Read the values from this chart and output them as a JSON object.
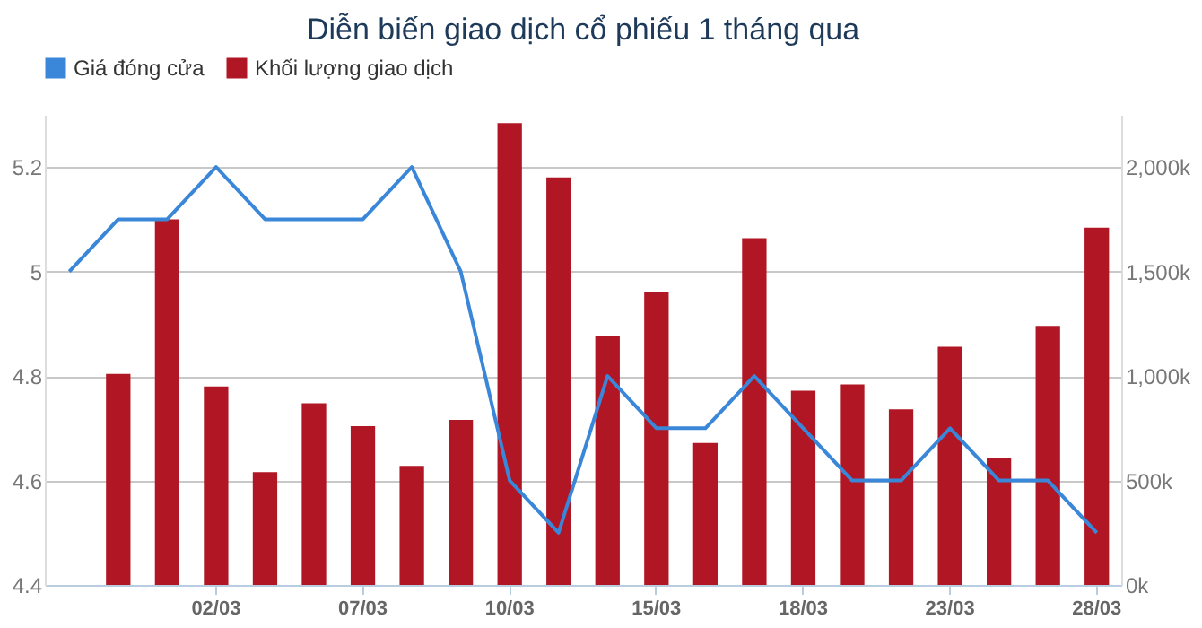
{
  "chart_data": {
    "type": "bar",
    "title": "Diễn biến giao dịch cổ phiếu 1 tháng qua",
    "categories": [
      null,
      null,
      null,
      "02/03",
      null,
      null,
      "07/03",
      null,
      null,
      "10/03",
      null,
      null,
      "15/03",
      null,
      null,
      "18/03",
      null,
      null,
      "23/03",
      null,
      null,
      "28/03"
    ],
    "series": [
      {
        "name": "Giá đóng cửa",
        "type": "line",
        "color": "#3a87d9",
        "values": [
          5.0,
          5.1,
          5.1,
          5.2,
          5.1,
          5.1,
          5.1,
          5.2,
          5.0,
          4.6,
          4.5,
          4.8,
          4.7,
          4.7,
          4.8,
          4.7,
          4.6,
          4.6,
          4.7,
          4.6,
          4.6,
          4.5
        ]
      },
      {
        "name": "Khối lượng giao dịch",
        "axis": "y2",
        "color": "#b01623",
        "values": [
          null,
          1010,
          1750,
          950,
          540,
          870,
          760,
          570,
          790,
          2210,
          1950,
          1190,
          1400,
          680,
          1660,
          930,
          960,
          840,
          1140,
          610,
          1240,
          1710
        ]
      }
    ],
    "ylim": [
      4.4,
      5.3
    ],
    "yticks": [
      4.4,
      4.6,
      4.8,
      5,
      5.2
    ],
    "y2lim": [
      0,
      2250
    ],
    "y2ticks": [
      {
        "value": 0,
        "label": "0k"
      },
      {
        "value": 500,
        "label": "500k"
      },
      {
        "value": 1000,
        "label": "1,000k"
      },
      {
        "value": 1500,
        "label": "1,500k"
      },
      {
        "value": 2000,
        "label": "2,000k"
      }
    ],
    "grid": "y",
    "legend": "top",
    "marker": "none",
    "line_style": "solid"
  }
}
